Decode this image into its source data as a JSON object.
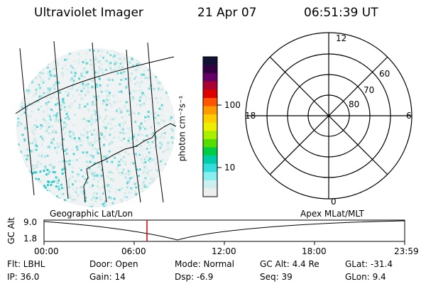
{
  "header": {
    "instrument": "Ultraviolet Imager",
    "date": "21 Apr 07",
    "time": "06:51:39 UT"
  },
  "colorbar": {
    "unit_label": "photon cm⁻²s⁻¹",
    "ticks": [
      "100",
      "10"
    ],
    "colors": [
      "#111133",
      "#330044",
      "#660066",
      "#aa0033",
      "#dd0000",
      "#ff5500",
      "#ff9900",
      "#ffcc00",
      "#eeee00",
      "#aaee00",
      "#55dd00",
      "#00cc44",
      "#00ccaa",
      "#33dddd",
      "#88eeee",
      "#cceeee",
      "#eeeeee"
    ]
  },
  "polar_plot": {
    "rings": [
      "80",
      "70",
      "60"
    ],
    "mlt_labels": {
      "top": "12",
      "bottom": "0",
      "left": "18",
      "right": "6"
    }
  },
  "orbit_panel": {
    "left_label": "Geographic Lat/Lon",
    "right_label": "Apex MLat/MLT",
    "y_title": "GC Alt",
    "y_ticks": [
      "9.0",
      "1.8"
    ],
    "x_ticks": [
      "00:00",
      "06:00",
      "12:00",
      "18:00",
      "23:59"
    ],
    "marker_color": "#cc0000"
  },
  "status": {
    "filter": "Flt: LBHL",
    "ip": "IP: 36.0",
    "door": "Door: Open",
    "gain": "Gain: 14",
    "mode": "Mode: Normal",
    "dsp": "Dsp:   -6.9",
    "gc_alt": "GC Alt: 4.4 Re",
    "seq": "Seq: 39",
    "glat": "GLat:  -31.4",
    "glon": "GLon:   9.4"
  }
}
